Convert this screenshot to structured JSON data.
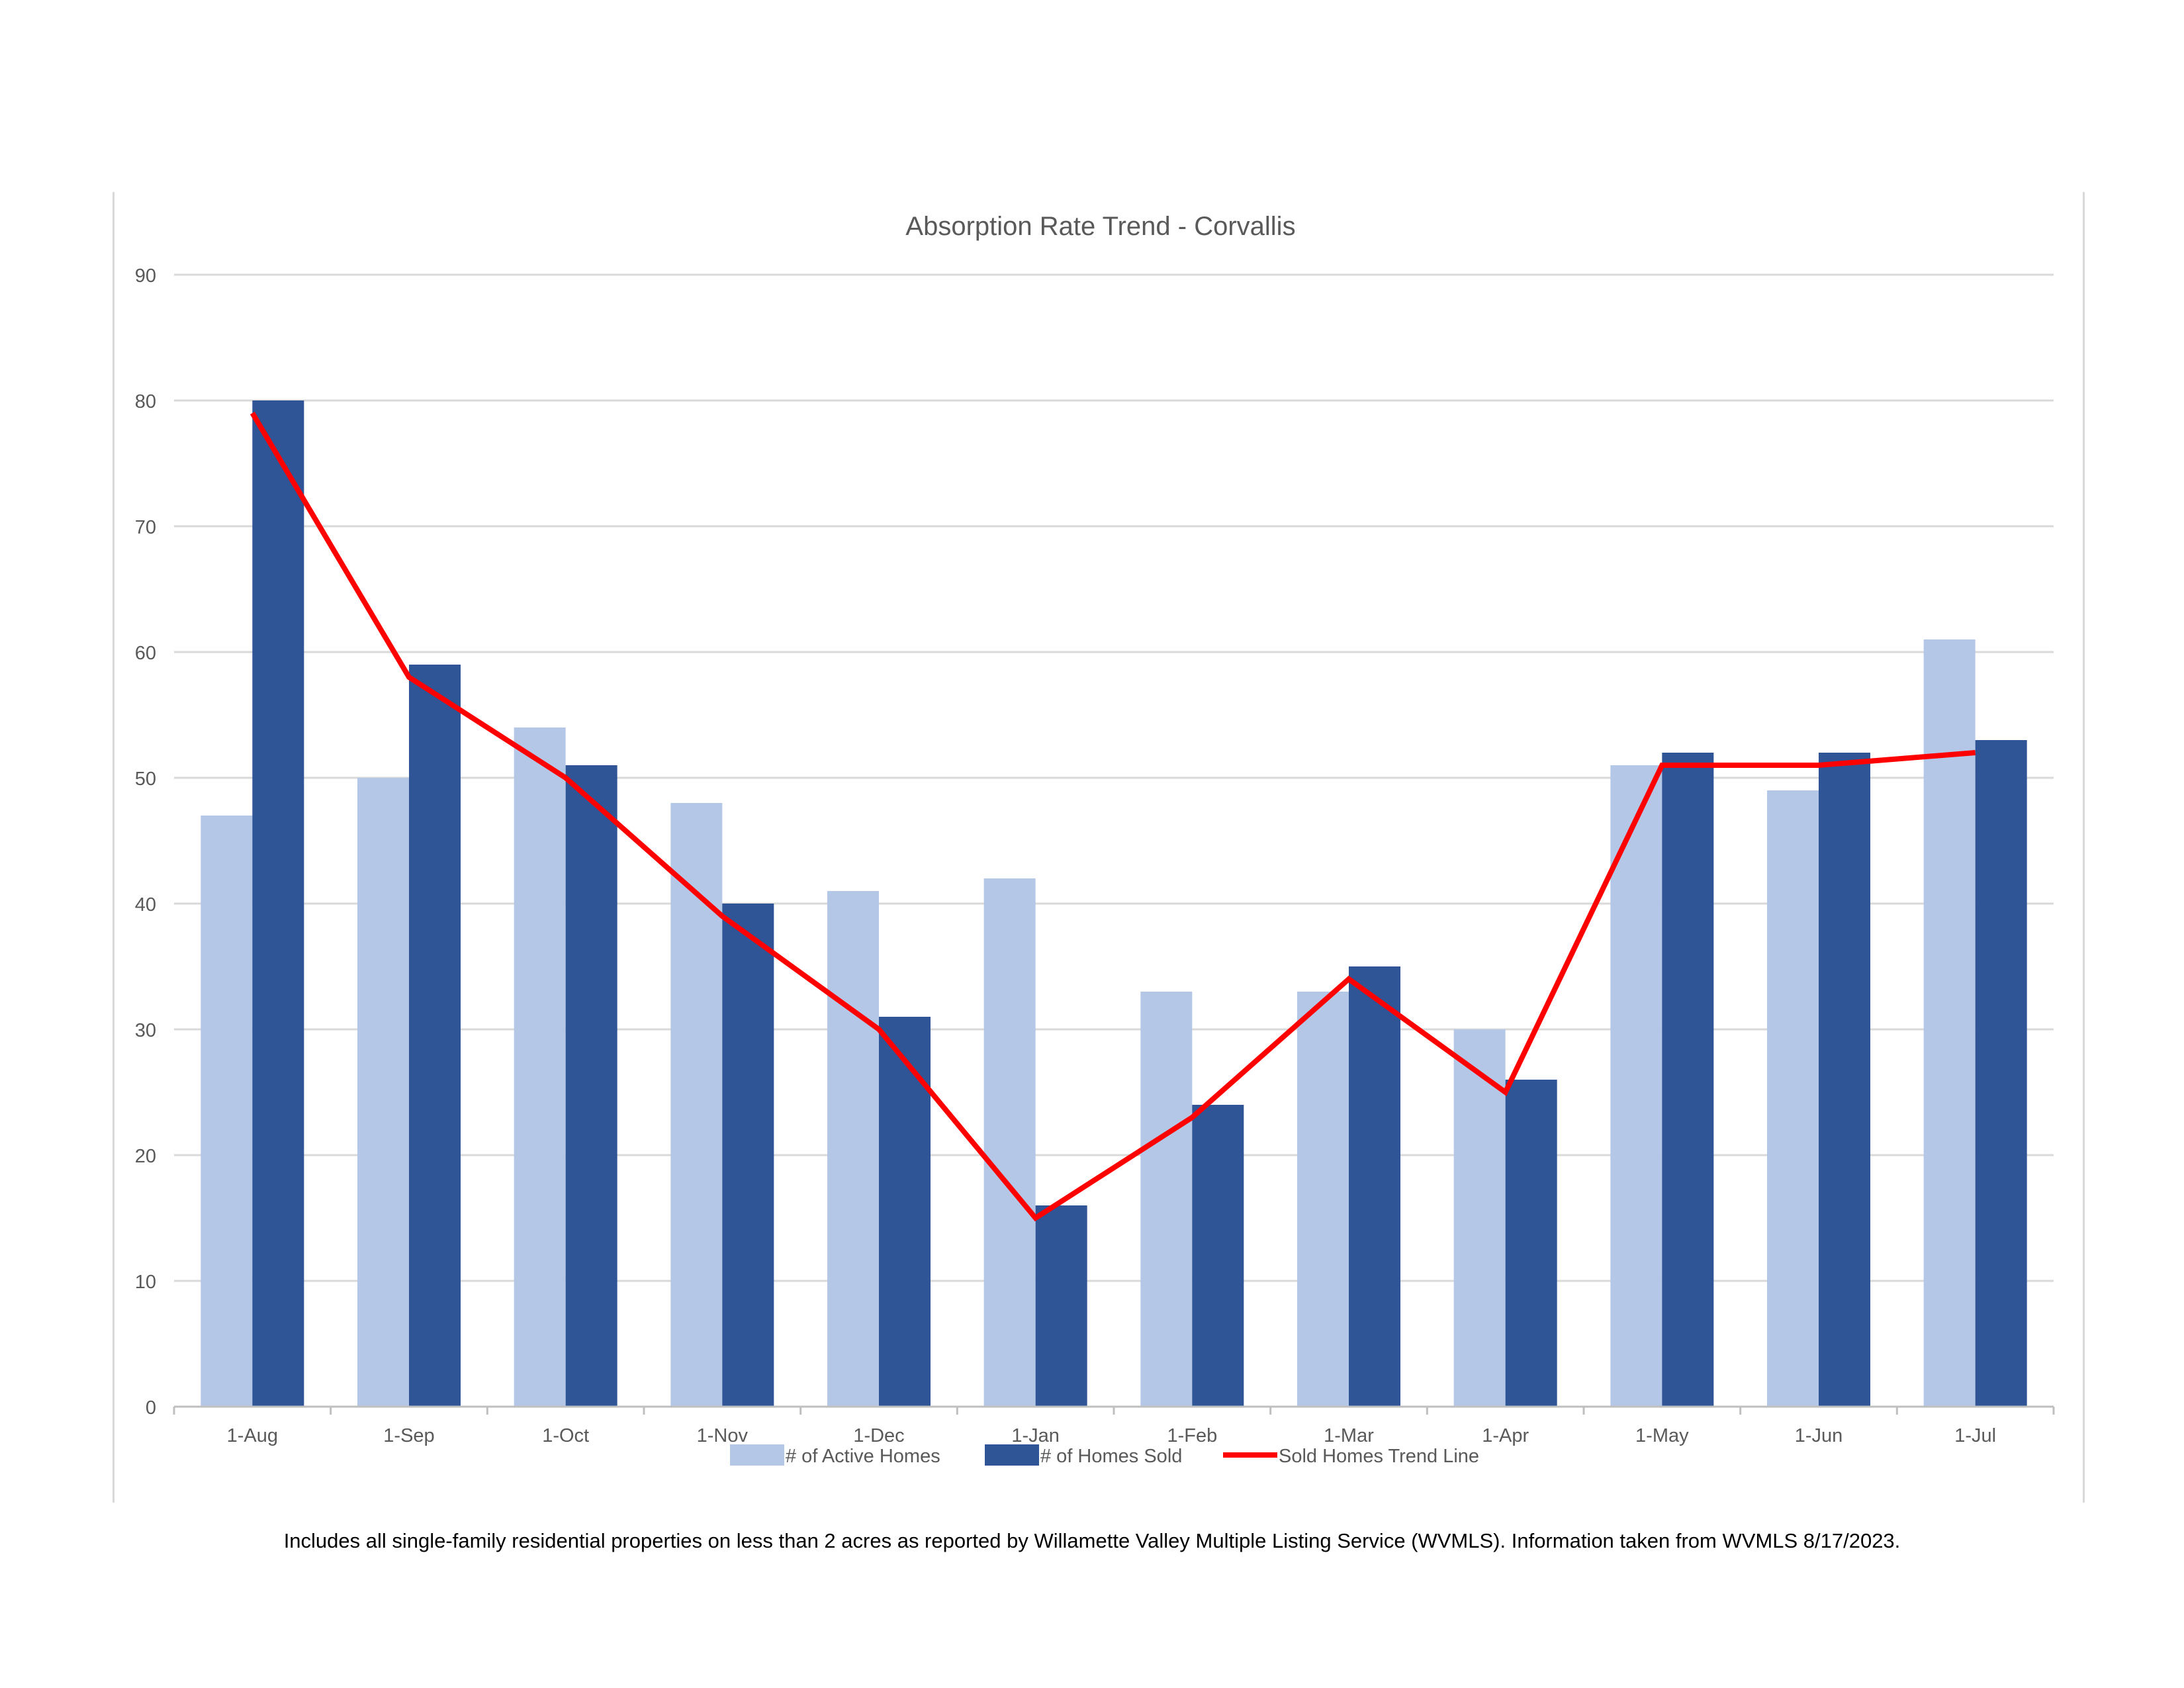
{
  "chart_data": {
    "type": "bar",
    "title": "Absorption Rate Trend - Corvallis",
    "categories": [
      "1-Aug",
      "1-Sep",
      "1-Oct",
      "1-Nov",
      "1-Dec",
      "1-Jan",
      "1-Feb",
      "1-Mar",
      "1-Apr",
      "1-May",
      "1-Jun",
      "1-Jul"
    ],
    "series": [
      {
        "name": "# of Active Homes",
        "kind": "bar",
        "color": "#b4c7e7",
        "values": [
          47,
          50,
          54,
          48,
          41,
          42,
          33,
          33,
          30,
          51,
          49,
          61
        ]
      },
      {
        "name": "# of Homes Sold",
        "kind": "bar",
        "color": "#2f5597",
        "values": [
          80,
          59,
          51,
          40,
          31,
          16,
          24,
          35,
          26,
          52,
          52,
          53
        ]
      },
      {
        "name": "Sold Homes Trend Line",
        "kind": "line",
        "color": "#ff0000",
        "values": [
          79,
          58,
          50,
          39,
          30,
          15,
          23,
          34,
          25,
          51,
          51,
          52
        ]
      }
    ],
    "yticks": [
      "0",
      "10",
      "20",
      "30",
      "40",
      "50",
      "60",
      "70",
      "80",
      "90"
    ],
    "ylim": [
      0,
      90
    ],
    "grid": true,
    "legend_position": "bottom",
    "xlabel": "",
    "ylabel": ""
  },
  "footnote": "Includes all single-family residential properties on less than 2 acres as reported by Willamette Valley Multiple Listing Service (WVMLS). Information taken from WVMLS 8/17/2023."
}
